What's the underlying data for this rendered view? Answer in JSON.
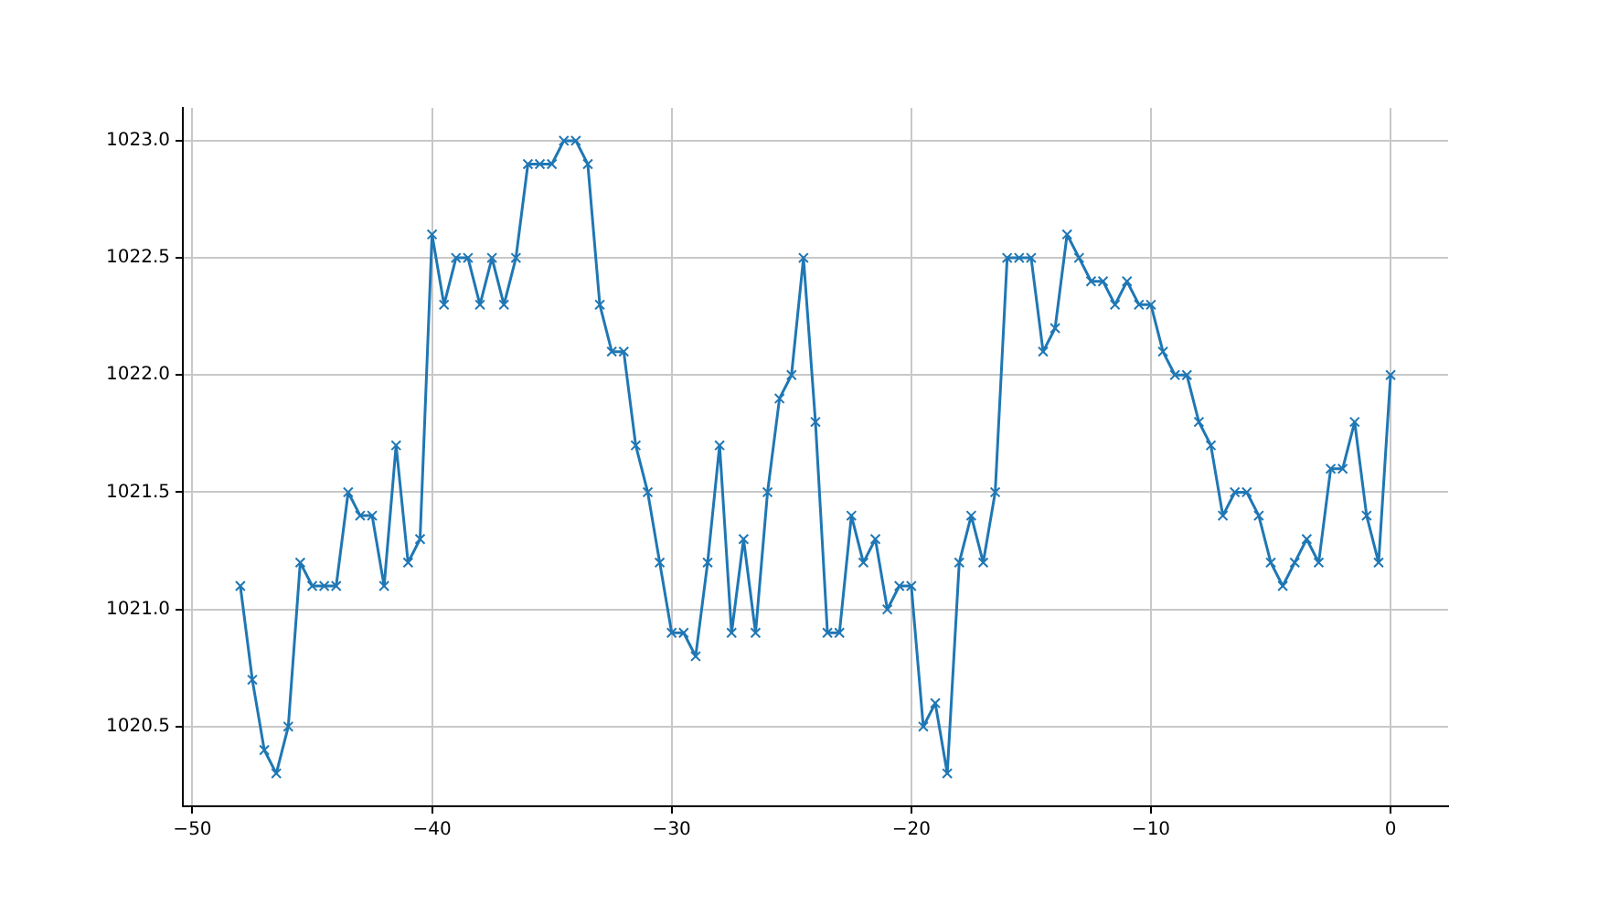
{
  "chart_data": {
    "type": "line",
    "marker": "cross",
    "grid": true,
    "x": [
      -48,
      -47.5,
      -47,
      -46.5,
      -46,
      -45.5,
      -45,
      -44.5,
      -44,
      -43.5,
      -43,
      -42.5,
      -42,
      -41.5,
      -41,
      -40.5,
      -40,
      -39.5,
      -39,
      -38.5,
      -38,
      -37.5,
      -37,
      -36.5,
      -36,
      -35.5,
      -35,
      -34.5,
      -34,
      -33.5,
      -33,
      -32.5,
      -32,
      -31.5,
      -31,
      -30.5,
      -30,
      -29.5,
      -29,
      -28.5,
      -28,
      -27.5,
      -27,
      -26.5,
      -26,
      -25.5,
      -25,
      -24.5,
      -24,
      -23.5,
      -23,
      -22.5,
      -22,
      -21.5,
      -21,
      -20.5,
      -20,
      -19.5,
      -19,
      -18.5,
      -18,
      -17.5,
      -17,
      -16.5,
      -16,
      -15.5,
      -15,
      -14.5,
      -14,
      -13.5,
      -13,
      -12.5,
      -12,
      -11.5,
      -11,
      -10.5,
      -10,
      -9.5,
      -9,
      -8.5,
      -8,
      -7.5,
      -7,
      -6.5,
      -6,
      -5.5,
      -5,
      -4.5,
      -4,
      -3.5,
      -3,
      -2.5,
      -2,
      -1.5,
      -1,
      -0.5,
      0
    ],
    "series": [
      {
        "color": "#1f77b4",
        "values": [
          1021.1,
          1020.7,
          1020.4,
          1020.3,
          1020.5,
          1021.2,
          1021.1,
          1021.1,
          1021.1,
          1021.5,
          1021.4,
          1021.4,
          1021.1,
          1021.7,
          1021.2,
          1021.3,
          1022.6,
          1022.3,
          1022.5,
          1022.5,
          1022.3,
          1022.5,
          1022.3,
          1022.5,
          1022.9,
          1022.9,
          1022.9,
          1023.0,
          1023.0,
          1022.9,
          1022.3,
          1022.1,
          1022.1,
          1021.7,
          1021.5,
          1021.2,
          1020.9,
          1020.9,
          1020.8,
          1021.2,
          1021.7,
          1020.9,
          1021.3,
          1020.9,
          1021.5,
          1021.9,
          1022.0,
          1022.5,
          1021.8,
          1020.9,
          1020.9,
          1021.4,
          1021.2,
          1021.3,
          1021.0,
          1021.1,
          1021.1,
          1020.5,
          1020.6,
          1020.3,
          1021.2,
          1021.4,
          1021.2,
          1021.5,
          1022.5,
          1022.5,
          1022.5,
          1022.1,
          1022.2,
          1022.6,
          1022.5,
          1022.4,
          1022.4,
          1022.3,
          1022.4,
          1022.3,
          1022.3,
          1022.1,
          1022.0,
          1022.0,
          1021.8,
          1021.7,
          1021.4,
          1021.5,
          1021.5,
          1021.4,
          1021.2,
          1021.1,
          1021.2,
          1021.3,
          1021.2,
          1021.6,
          1021.6,
          1021.8,
          1021.4,
          1021.2,
          1022.0
        ]
      }
    ],
    "xlim": [
      -50.4,
      2.4
    ],
    "xticks": [
      {
        "value": -50,
        "label": "−50"
      },
      {
        "value": -40,
        "label": "−40"
      },
      {
        "value": -30,
        "label": "−30"
      },
      {
        "value": -20,
        "label": "−20"
      },
      {
        "value": -10,
        "label": "−10"
      },
      0
    ],
    "ylim": [
      1020.16,
      1023.14
    ],
    "yticks": [
      {
        "value": 1020.5,
        "label": "1020.5"
      },
      {
        "value": 1021,
        "label": "1021.0"
      },
      {
        "value": 1021.5,
        "label": "1021.5"
      },
      {
        "value": 1022,
        "label": "1022.0"
      },
      {
        "value": 1022.5,
        "label": "1022.5"
      },
      {
        "value": 1023,
        "label": "1023.0"
      }
    ]
  }
}
